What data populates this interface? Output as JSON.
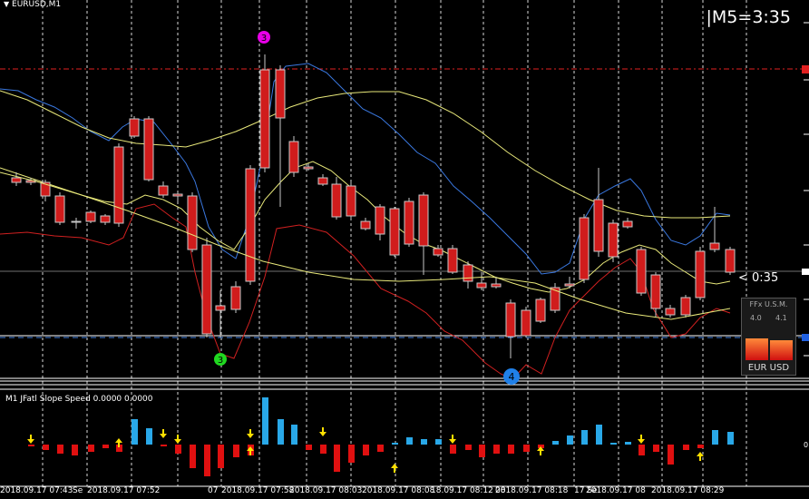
{
  "window": {
    "symbol_label": "EURUSD,M1",
    "timer_label": "|M5=3:35",
    "countdown_label": "< 0:35"
  },
  "indicator": {
    "label": "M1 JFatl Slope Speed 0.0000 0.0000",
    "right_tick_top": "0",
    "right_tick_bottom": "0"
  },
  "markers": {
    "peak_label": "3",
    "trough_label": "3",
    "low_label": "4"
  },
  "ffx_panel": {
    "title": "FFx U.S.M.",
    "value_left": "4.0",
    "value_right": "4.1",
    "currencies": "EUR  USD"
  },
  "time_axis": {
    "labels": [
      "2018.09.17 07:43",
      "Se",
      "2018.09.17 07:52",
      "07",
      "2018.09.17 07:58",
      "2018.09.17 08:03",
      "2018.09.17 08:08",
      "18.09.17 08:12",
      "08",
      "2018.09.17 08:18",
      "17 Se",
      "2018.09.17 08",
      "2018.09.17 08:29"
    ]
  },
  "colors": {
    "background": "#000000",
    "bull_candle": "#1e47d8",
    "bear_candle": "#d01c1c",
    "yellow_ma": "#e8e87a",
    "blue_band": "#3a78e0",
    "red_band": "#d02020",
    "hist_up": "#29a8e8",
    "hist_down": "#e01010",
    "arrow_yellow": "#ffe000",
    "marker_magenta": "#e800e8",
    "marker_green": "#20d820",
    "marker_blue": "#2080e8"
  },
  "icons": {
    "window_menu": "triangle-down-icon",
    "up_arrow": "arrow-up-icon",
    "down_arrow": "arrow-down-icon"
  }
}
